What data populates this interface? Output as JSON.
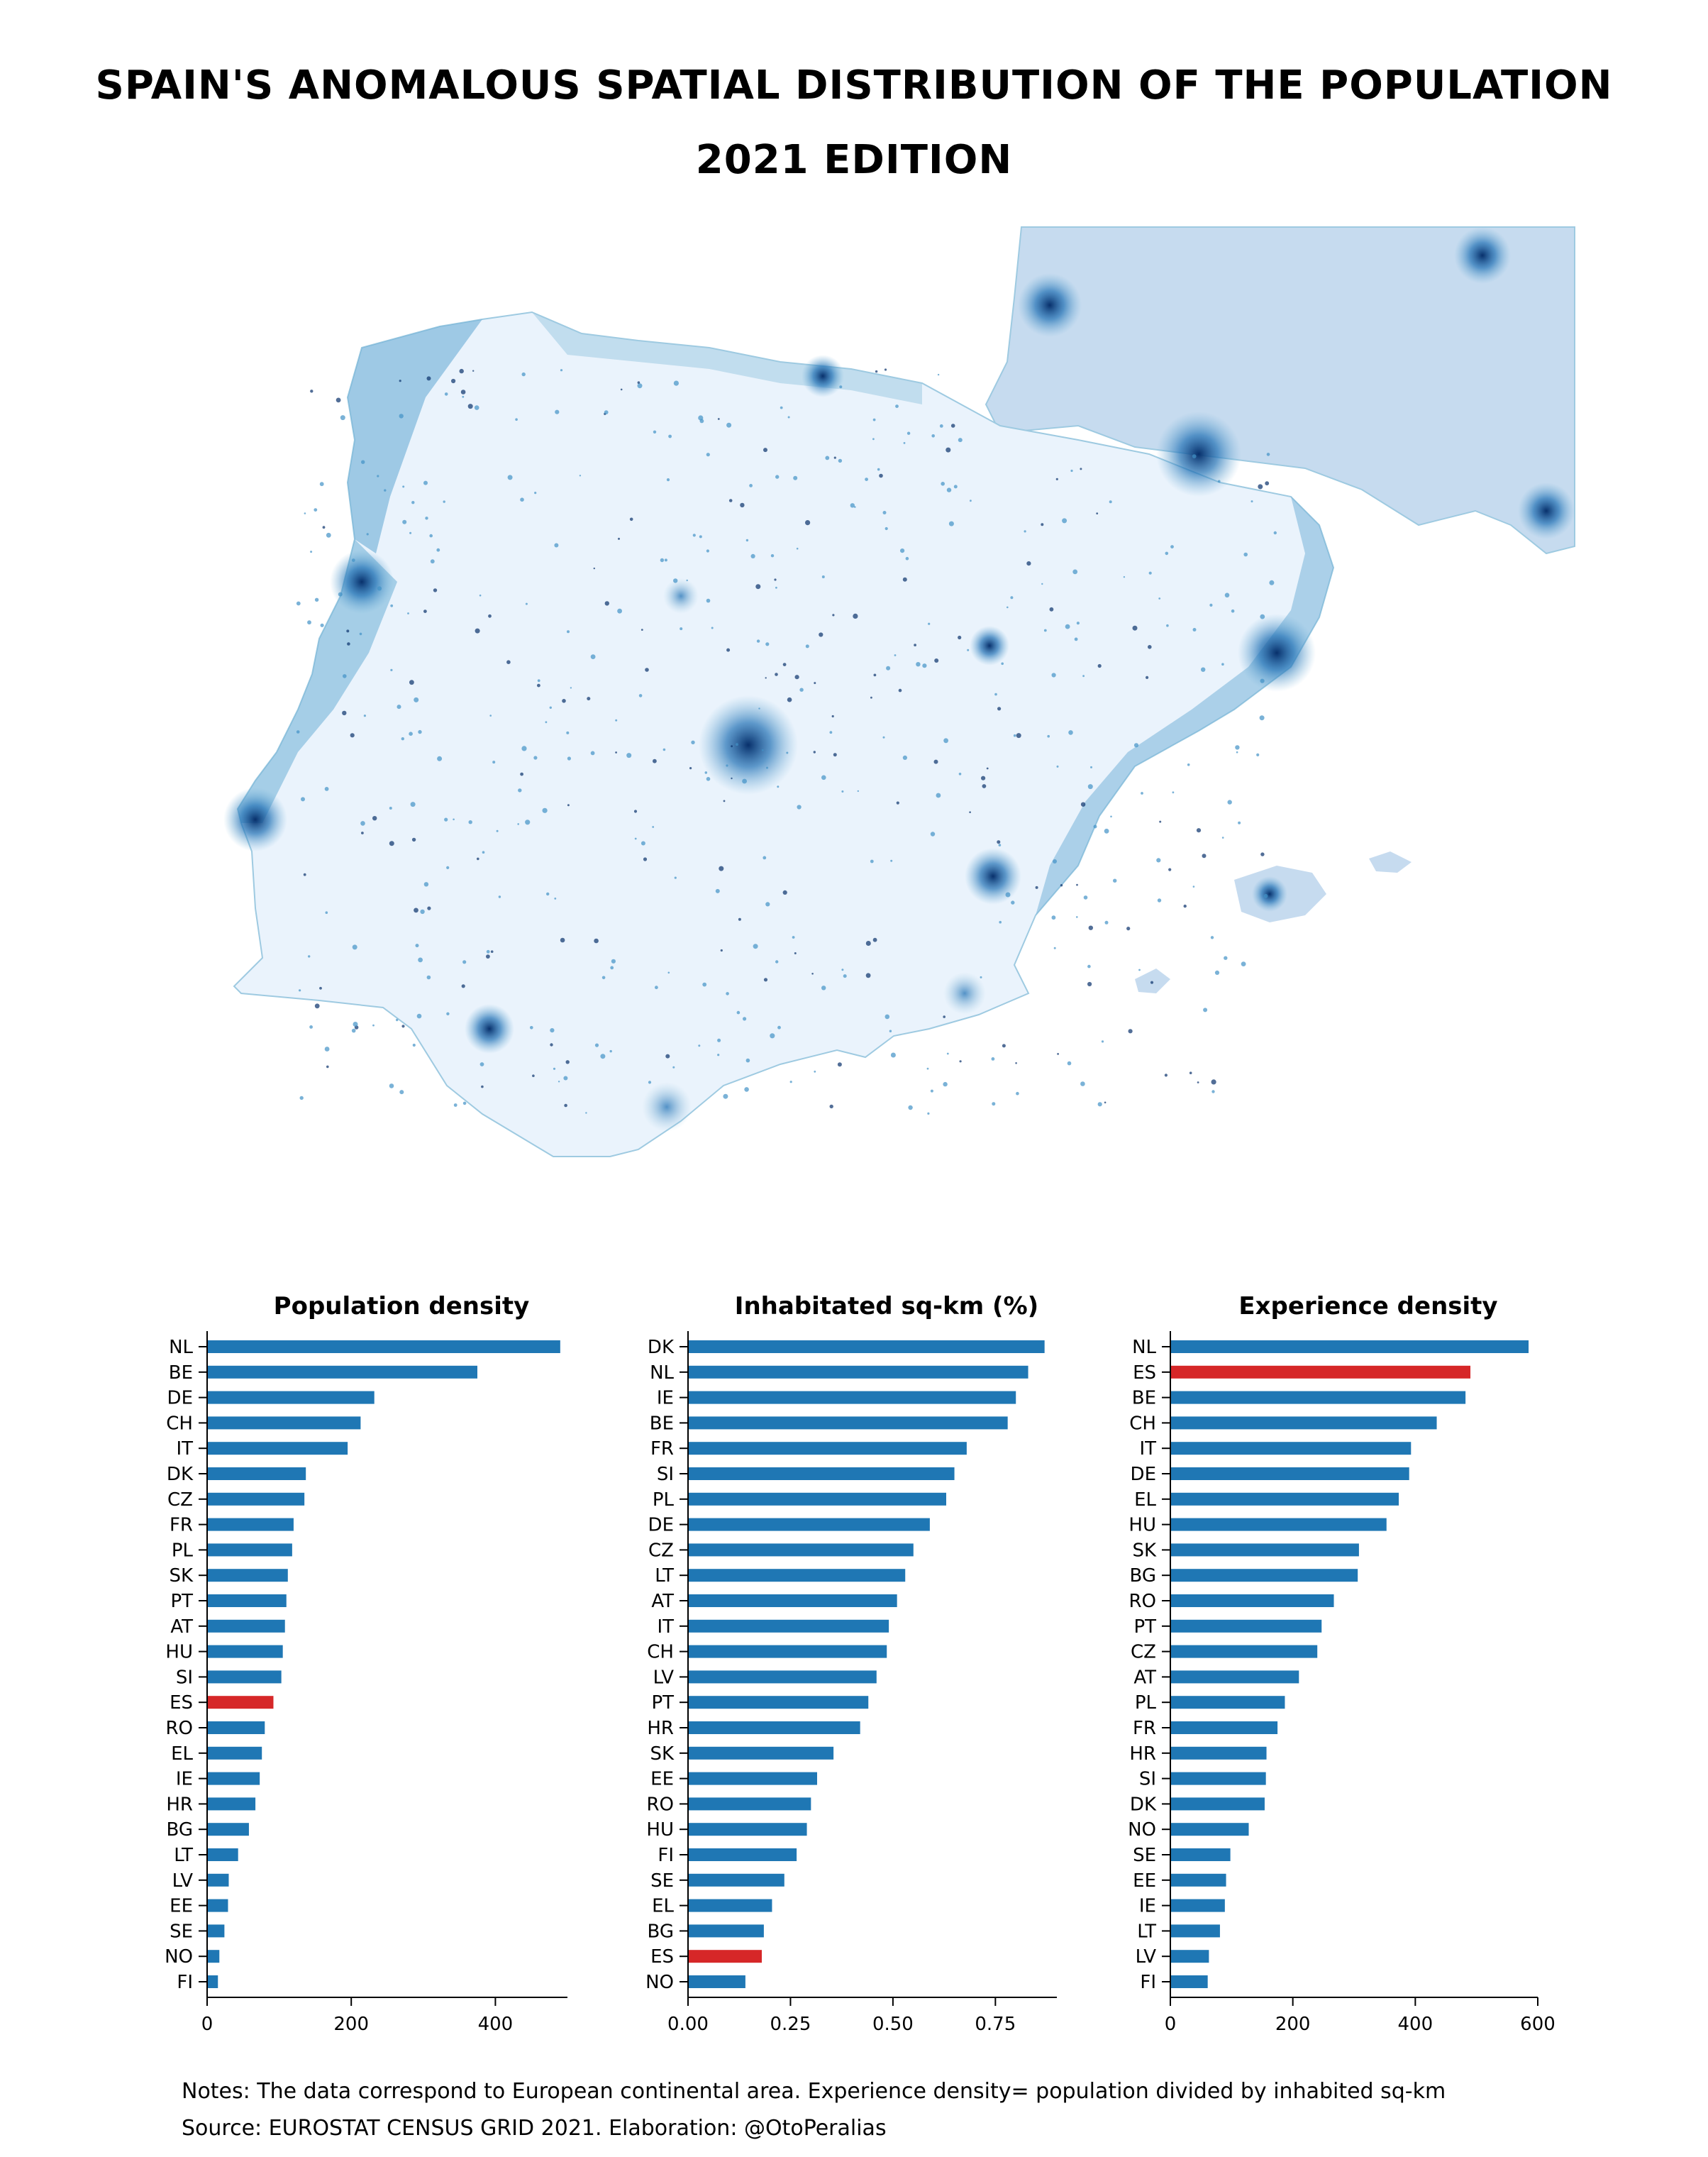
{
  "title": "SPAIN'S ANOMALOUS SPATIAL DISTRIBUTION OF THE POPULATION",
  "subtitle": "2021 EDITION",
  "colors": {
    "bar": "#1f77b4",
    "highlight": "#d62728",
    "map_light": "#eaf3fc",
    "map_dark": "#08306b"
  },
  "highlight_country": "ES",
  "chart_data": [
    {
      "type": "bar",
      "orientation": "horizontal",
      "title": "Population density",
      "categories": [
        "NL",
        "BE",
        "DE",
        "CH",
        "IT",
        "DK",
        "CZ",
        "FR",
        "PL",
        "SK",
        "PT",
        "AT",
        "HU",
        "SI",
        "ES",
        "RO",
        "EL",
        "IE",
        "HR",
        "BG",
        "LT",
        "LV",
        "EE",
        "SE",
        "NO",
        "FI"
      ],
      "values": [
        490,
        375,
        232,
        213,
        195,
        137,
        135,
        120,
        118,
        112,
        110,
        108,
        105,
        103,
        92,
        80,
        76,
        73,
        67,
        58,
        43,
        30,
        29,
        24,
        17,
        15
      ],
      "xlim": [
        0,
        500
      ],
      "xticks": [
        0,
        200,
        400
      ]
    },
    {
      "type": "bar",
      "orientation": "horizontal",
      "title": "Inhabitated sq-km (%)",
      "categories": [
        "DK",
        "NL",
        "IE",
        "BE",
        "FR",
        "SI",
        "PL",
        "DE",
        "CZ",
        "LT",
        "AT",
        "IT",
        "CH",
        "LV",
        "PT",
        "HR",
        "SK",
        "EE",
        "RO",
        "HU",
        "FI",
        "SE",
        "EL",
        "BG",
        "ES",
        "NO"
      ],
      "values": [
        0.87,
        0.83,
        0.8,
        0.78,
        0.68,
        0.65,
        0.63,
        0.59,
        0.55,
        0.53,
        0.51,
        0.49,
        0.485,
        0.46,
        0.44,
        0.42,
        0.355,
        0.315,
        0.3,
        0.29,
        0.265,
        0.235,
        0.205,
        0.185,
        0.18,
        0.14
      ],
      "xlim": [
        0,
        0.9
      ],
      "xticks": [
        "0.00",
        "0.25",
        "0.50",
        "0.75"
      ]
    },
    {
      "type": "bar",
      "orientation": "horizontal",
      "title": "Experience density",
      "categories": [
        "NL",
        "ES",
        "BE",
        "CH",
        "IT",
        "DE",
        "EL",
        "HU",
        "SK",
        "BG",
        "RO",
        "PT",
        "CZ",
        "AT",
        "PL",
        "FR",
        "HR",
        "SI",
        "DK",
        "NO",
        "SE",
        "EE",
        "IE",
        "LT",
        "LV",
        "FI"
      ],
      "values": [
        585,
        490,
        482,
        435,
        393,
        390,
        373,
        353,
        308,
        306,
        267,
        247,
        240,
        210,
        187,
        175,
        157,
        156,
        154,
        128,
        98,
        91,
        89,
        81,
        63,
        61
      ],
      "xlim": [
        0,
        600
      ],
      "xticks": [
        0,
        200,
        400,
        600
      ]
    }
  ],
  "footer": {
    "note": "Notes: The data correspond to European continental area. Experience density= population divided by inhabited sq-km",
    "source": "Source: EUROSTAT CENSUS GRID 2021. Elaboration: @OtoPeralias"
  }
}
